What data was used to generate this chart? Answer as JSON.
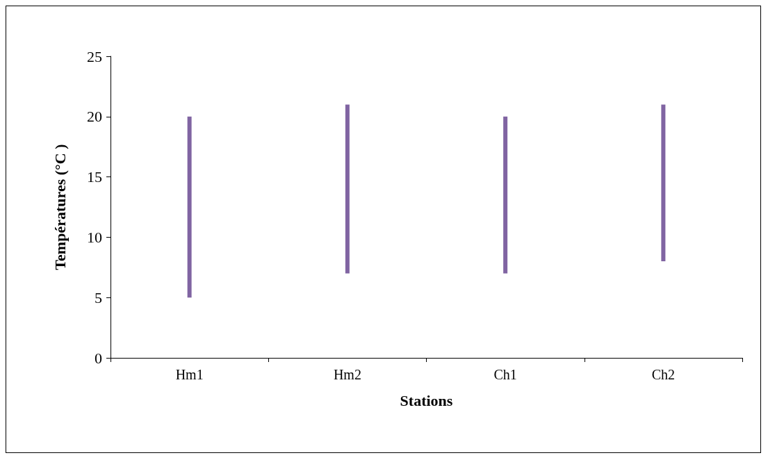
{
  "chart_data": {
    "type": "bar",
    "xlabel": "Stations",
    "ylabel": "Températures (°C )",
    "categories": [
      "Hm1",
      "Hm2",
      "Ch1",
      "Ch2"
    ],
    "base": [
      5,
      7,
      7,
      8
    ],
    "values": [
      15,
      14,
      13,
      13
    ],
    "color": "#8064a2",
    "ylim": [
      0,
      25
    ],
    "yticks": [
      0,
      5,
      10,
      15,
      20,
      25
    ],
    "grid": false
  }
}
